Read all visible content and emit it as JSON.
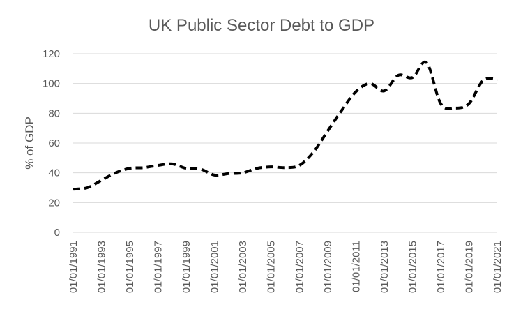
{
  "chart_data": {
    "type": "line",
    "title": "UK Public Sector Debt to GDP",
    "xlabel": "",
    "ylabel": "% of GDP",
    "ylim": [
      0,
      120
    ],
    "yticks": [
      0,
      20,
      40,
      60,
      80,
      100,
      120
    ],
    "grid": true,
    "legend": "none",
    "x_tick_labels": [
      "01/01/1991",
      "01/01/1993",
      "01/01/1995",
      "01/01/1997",
      "01/01/1999",
      "01/01/2001",
      "01/01/2003",
      "01/01/2005",
      "01/01/2007",
      "01/01/2009",
      "01/01/2011",
      "01/01/2013",
      "01/01/2015",
      "01/01/2017",
      "01/01/2019",
      "01/01/2021"
    ],
    "x": [
      "01/01/1991",
      "01/01/1992",
      "01/01/1993",
      "01/01/1994",
      "01/01/1995",
      "01/01/1996",
      "01/01/1997",
      "01/01/1998",
      "01/01/1999",
      "01/01/2000",
      "01/01/2001",
      "01/01/2002",
      "01/01/2003",
      "01/01/2004",
      "01/01/2005",
      "01/01/2006",
      "01/01/2007",
      "01/01/2008",
      "01/01/2009",
      "01/01/2010",
      "01/01/2011",
      "01/01/2012",
      "01/01/2013",
      "01/01/2014",
      "01/01/2015",
      "01/01/2016",
      "01/01/2017",
      "01/01/2018",
      "01/01/2019",
      "01/01/2020",
      "01/01/2021"
    ],
    "series": [
      {
        "values": [
          29,
          30,
          35,
          40,
          43,
          43.5,
          45,
          46,
          43,
          42.5,
          38.5,
          39.5,
          40,
          43,
          44,
          43.5,
          45,
          54,
          68,
          82,
          94.5,
          100,
          95,
          105.5,
          104,
          114,
          86.5,
          83.5,
          86.5,
          102,
          103
        ],
        "color": "#000000"
      }
    ]
  }
}
